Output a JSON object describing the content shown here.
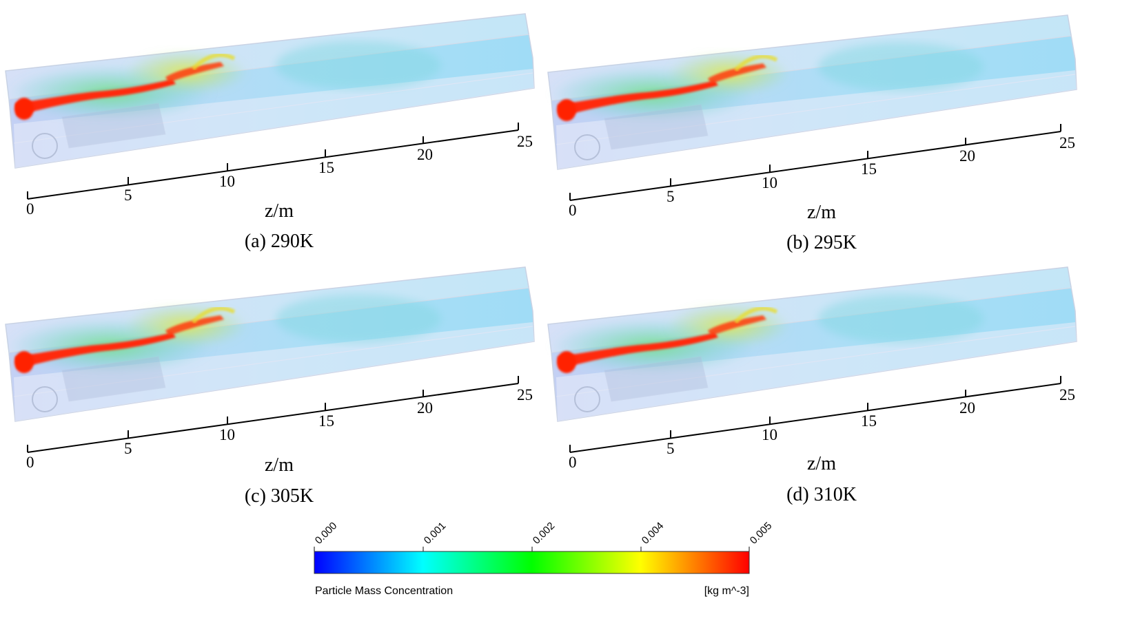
{
  "panels": [
    {
      "caption": "(a) 290K",
      "axis_label": "z/m",
      "ticks": [
        "0",
        "5",
        "10",
        "15",
        "20",
        "25"
      ]
    },
    {
      "caption": "(b) 295K",
      "axis_label": "z/m",
      "ticks": [
        "0",
        "5",
        "10",
        "15",
        "20",
        "25"
      ]
    },
    {
      "caption": "(c) 305K",
      "axis_label": "z/m",
      "ticks": [
        "0",
        "5",
        "10",
        "15",
        "20",
        "25"
      ]
    },
    {
      "caption": "(d) 310K",
      "axis_label": "z/m",
      "ticks": [
        "0",
        "5",
        "10",
        "15",
        "20",
        "25"
      ]
    }
  ],
  "colorbar": {
    "title": "Particle Mass Concentration",
    "unit": "[kg m^-3]",
    "ticks": [
      "0.000",
      "0.001",
      "0.002",
      "0.004",
      "0.005"
    ],
    "colors": [
      "#0000ff",
      "#00ffff",
      "#00ff00",
      "#ffff00",
      "#ff0000"
    ]
  }
}
